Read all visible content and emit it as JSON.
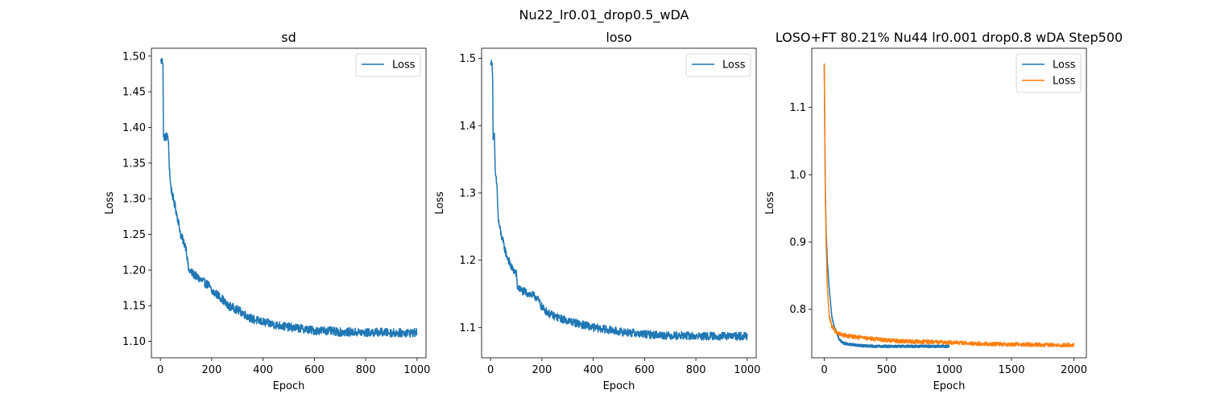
{
  "figure": {
    "title": "Nu22_lr0.01_drop0.5_wDA"
  },
  "chart_data": [
    {
      "type": "line",
      "title": "sd",
      "xlabel": "Epoch",
      "ylabel": "Loss",
      "xlim": [
        -35,
        1035
      ],
      "ylim": [
        1.077,
        1.511
      ],
      "xticks": [
        0,
        200,
        400,
        600,
        800,
        1000
      ],
      "xtick_labels": [
        "0",
        "200",
        "400",
        "600",
        "800",
        "1000"
      ],
      "yticks": [
        1.1,
        1.15,
        1.2,
        1.25,
        1.3,
        1.35,
        1.4,
        1.45,
        1.5
      ],
      "ytick_labels": [
        "1.10",
        "1.15",
        "1.20",
        "1.25",
        "1.30",
        "1.35",
        "1.40",
        "1.45",
        "1.50"
      ],
      "legend": "upper right",
      "grid": false,
      "series": [
        {
          "name": "Loss",
          "color": "#1f77b4",
          "x_range": [
            0,
            1000
          ],
          "noise": 0.006,
          "points": [
            [
              0,
              1.493
            ],
            [
              10,
              1.493
            ],
            [
              12,
              1.387
            ],
            [
              30,
              1.387
            ],
            [
              35,
              1.345
            ],
            [
              40,
              1.318
            ],
            [
              50,
              1.3
            ],
            [
              60,
              1.285
            ],
            [
              70,
              1.268
            ],
            [
              80,
              1.248
            ],
            [
              90,
              1.24
            ],
            [
              100,
              1.232
            ],
            [
              110,
              1.2
            ],
            [
              130,
              1.194
            ],
            [
              150,
              1.188
            ],
            [
              170,
              1.183
            ],
            [
              190,
              1.178
            ],
            [
              200,
              1.17
            ],
            [
              220,
              1.166
            ],
            [
              240,
              1.16
            ],
            [
              260,
              1.15
            ],
            [
              280,
              1.148
            ],
            [
              300,
              1.144
            ],
            [
              320,
              1.14
            ],
            [
              340,
              1.135
            ],
            [
              360,
              1.131
            ],
            [
              380,
              1.129
            ],
            [
              400,
              1.127
            ],
            [
              450,
              1.123
            ],
            [
              500,
              1.12
            ],
            [
              550,
              1.118
            ],
            [
              600,
              1.115
            ],
            [
              650,
              1.115
            ],
            [
              700,
              1.113
            ],
            [
              750,
              1.113
            ],
            [
              800,
              1.112
            ],
            [
              850,
              1.113
            ],
            [
              900,
              1.112
            ],
            [
              950,
              1.112
            ],
            [
              1000,
              1.112
            ]
          ]
        }
      ]
    },
    {
      "type": "line",
      "title": "loso",
      "xlabel": "Epoch",
      "ylabel": "Loss",
      "xlim": [
        -35,
        1035
      ],
      "ylim": [
        1.055,
        1.515
      ],
      "xticks": [
        0,
        200,
        400,
        600,
        800,
        1000
      ],
      "xtick_labels": [
        "0",
        "200",
        "400",
        "600",
        "800",
        "1000"
      ],
      "yticks": [
        1.1,
        1.2,
        1.3,
        1.4,
        1.5
      ],
      "ytick_labels": [
        "1.1",
        "1.2",
        "1.3",
        "1.4",
        "1.5"
      ],
      "legend": "upper right",
      "grid": false,
      "series": [
        {
          "name": "Loss",
          "color": "#1f77b4",
          "x_range": [
            0,
            1000
          ],
          "noise": 0.006,
          "points": [
            [
              0,
              1.49
            ],
            [
              5,
              1.497
            ],
            [
              8,
              1.47
            ],
            [
              10,
              1.385
            ],
            [
              15,
              1.385
            ],
            [
              18,
              1.33
            ],
            [
              25,
              1.31
            ],
            [
              30,
              1.26
            ],
            [
              40,
              1.24
            ],
            [
              50,
              1.225
            ],
            [
              60,
              1.21
            ],
            [
              70,
              1.2
            ],
            [
              80,
              1.19
            ],
            [
              90,
              1.185
            ],
            [
              100,
              1.18
            ],
            [
              105,
              1.16
            ],
            [
              120,
              1.155
            ],
            [
              150,
              1.15
            ],
            [
              180,
              1.145
            ],
            [
              200,
              1.13
            ],
            [
              230,
              1.12
            ],
            [
              260,
              1.115
            ],
            [
              300,
              1.11
            ],
            [
              350,
              1.105
            ],
            [
              400,
              1.1
            ],
            [
              450,
              1.097
            ],
            [
              500,
              1.094
            ],
            [
              550,
              1.092
            ],
            [
              600,
              1.09
            ],
            [
              650,
              1.089
            ],
            [
              700,
              1.088
            ],
            [
              750,
              1.088
            ],
            [
              800,
              1.087
            ],
            [
              850,
              1.087
            ],
            [
              900,
              1.087
            ],
            [
              950,
              1.087
            ],
            [
              1000,
              1.087
            ]
          ]
        }
      ]
    },
    {
      "type": "line",
      "title": "LOSO+FT 80.21% Nu44 lr0.001 drop0.8 wDA Step500",
      "xlabel": "Epoch",
      "ylabel": "Loss",
      "xlim": [
        -100,
        2100
      ],
      "ylim": [
        0.728,
        1.188
      ],
      "xticks": [
        0,
        500,
        1000,
        1500,
        2000
      ],
      "xtick_labels": [
        "0",
        "500",
        "1000",
        "1500",
        "2000"
      ],
      "yticks": [
        0.8,
        0.9,
        1.0,
        1.1
      ],
      "ytick_labels": [
        "0.8",
        "0.9",
        "1.0",
        "1.1"
      ],
      "legend": "upper right",
      "grid": false,
      "series": [
        {
          "name": "Loss",
          "color": "#1f77b4",
          "x_range": [
            0,
            1000
          ],
          "noise": 0.002,
          "points": [
            [
              0,
              1.165
            ],
            [
              5,
              1.05
            ],
            [
              10,
              0.96
            ],
            [
              15,
              0.92
            ],
            [
              25,
              0.87
            ],
            [
              40,
              0.83
            ],
            [
              50,
              0.81
            ],
            [
              60,
              0.79
            ],
            [
              80,
              0.775
            ],
            [
              100,
              0.765
            ],
            [
              120,
              0.755
            ],
            [
              150,
              0.75
            ],
            [
              200,
              0.748
            ],
            [
              300,
              0.746
            ],
            [
              400,
              0.745
            ],
            [
              600,
              0.745
            ],
            [
              800,
              0.745
            ],
            [
              1000,
              0.745
            ]
          ]
        },
        {
          "name": "Loss",
          "color": "#ff7f0e",
          "x_range": [
            0,
            2000
          ],
          "noise": 0.003,
          "points": [
            [
              0,
              1.165
            ],
            [
              8,
              0.98
            ],
            [
              15,
              0.9
            ],
            [
              25,
              0.83
            ],
            [
              40,
              0.79
            ],
            [
              60,
              0.775
            ],
            [
              80,
              0.77
            ],
            [
              100,
              0.765
            ],
            [
              150,
              0.762
            ],
            [
              200,
              0.76
            ],
            [
              300,
              0.758
            ],
            [
              400,
              0.756
            ],
            [
              500,
              0.754
            ],
            [
              700,
              0.752
            ],
            [
              1000,
              0.751
            ],
            [
              1200,
              0.749
            ],
            [
              1500,
              0.748
            ],
            [
              1800,
              0.747
            ],
            [
              2000,
              0.747
            ]
          ]
        }
      ]
    }
  ]
}
